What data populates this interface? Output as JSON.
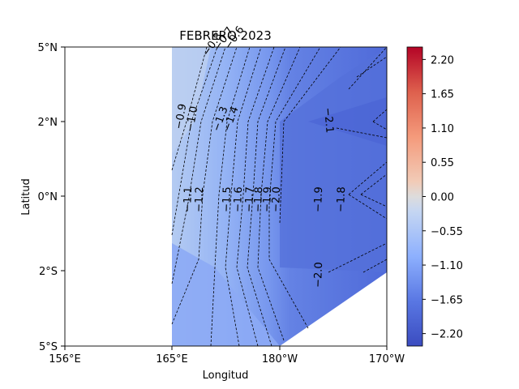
{
  "chart_data": {
    "type": "contour",
    "title": "FEBRERO 2023",
    "xlabel": "Longitud",
    "ylabel": "Latitud",
    "x_ticks": [
      "156°E",
      "165°E",
      "180°W",
      "170°W"
    ],
    "y_ticks": [
      "5°N",
      "2°N",
      "0°N",
      "2°S",
      "5°S"
    ],
    "colorbar": {
      "colormap": "coolwarm",
      "range": [
        -2.4,
        2.4
      ],
      "ticks": [
        "2.20",
        "1.65",
        "1.10",
        "0.55",
        "0.00",
        "−0.55",
        "−1.10",
        "−1.65",
        "−2.20"
      ]
    },
    "contour_labels": [
      "−0.9",
      "−1.0",
      "−1.1",
      "−1.2",
      "−1.3",
      "−1.4",
      "−1.5",
      "−1.6",
      "−1.7",
      "−1.8",
      "−1.9",
      "−2.0",
      "−2.1",
      "−1.9",
      "−1.8",
      "−2.0",
      "−0.8",
      "−0.7",
      "−0.6"
    ],
    "colors": {
      "light": "#b4cbf2",
      "mid": "#89aaf5",
      "dark": "#5f7ee0",
      "darkest": "#4c67d8",
      "lines": "#000000"
    }
  }
}
